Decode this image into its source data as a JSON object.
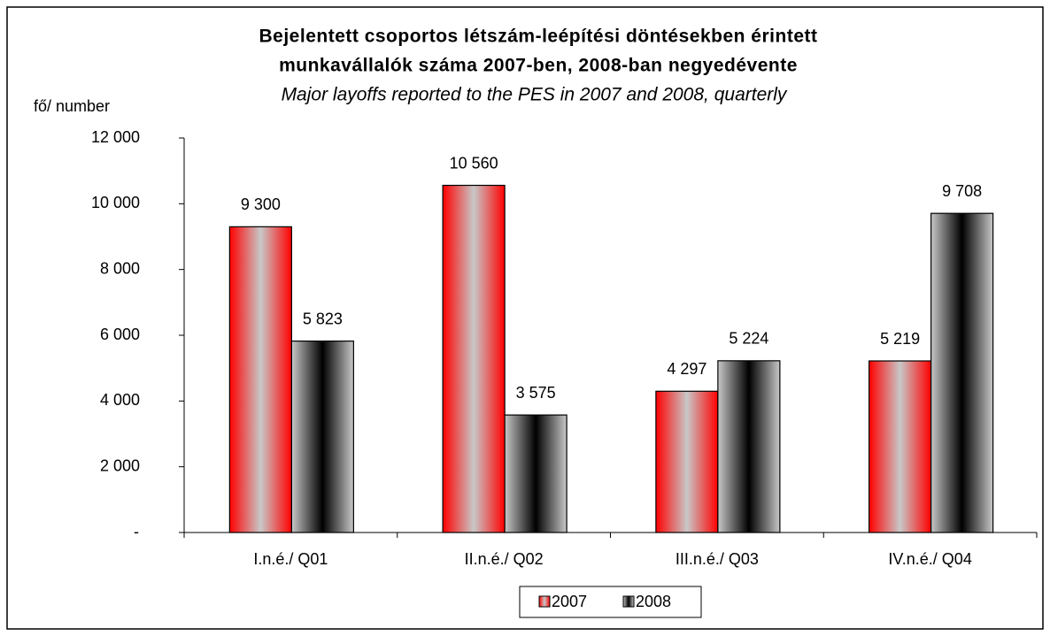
{
  "chart_data": {
    "type": "bar",
    "title": [
      "Bejelentett csoportos létszám-leépítési döntésekben érintett",
      "munkavállalók száma 2007-ben, 2008-ban negyedévente"
    ],
    "subtitle": "Major layoffs reported to the PES in 2007 and 2008, quarterly",
    "y_label": "fő/ number",
    "categories": [
      "I.n.é./ Q01",
      "II.n.é./ Q02",
      "III.n.é./ Q03",
      "IV.n.é./ Q04"
    ],
    "series": [
      {
        "name": "2007",
        "color": "#ff0000",
        "values": [
          9300,
          10560,
          4297,
          5219
        ],
        "value_labels": [
          "9 300",
          "10 560",
          "4 297",
          "5 219"
        ]
      },
      {
        "name": "2008",
        "color": "#000000",
        "values": [
          5823,
          3575,
          5224,
          9708
        ],
        "value_labels": [
          "5 823",
          "3 575",
          "5 224",
          "9 708"
        ]
      }
    ],
    "ylim": [
      0,
      12000
    ],
    "yticks": [
      {
        "value": 0,
        "label": "-"
      },
      {
        "value": 2000,
        "label": "2 000"
      },
      {
        "value": 4000,
        "label": "4 000"
      },
      {
        "value": 6000,
        "label": "6 000"
      },
      {
        "value": 8000,
        "label": "8 000"
      },
      {
        "value": 10000,
        "label": "10 000"
      },
      {
        "value": 12000,
        "label": "12 000"
      }
    ],
    "legend": "bottom"
  }
}
